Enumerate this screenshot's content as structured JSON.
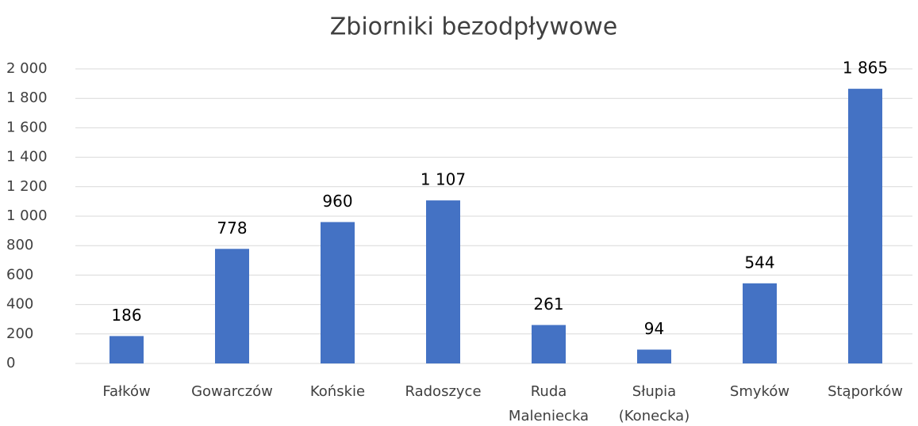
{
  "chart_data": {
    "type": "bar",
    "title": "Zbiorniki bezodpływowe",
    "categories": [
      "Fałków",
      "Gowarczów",
      "Końskie",
      "Radoszyce",
      "Ruda Maleniecka",
      "Słupia (Konecka)",
      "Smyków",
      "Stąporków"
    ],
    "values": [
      186,
      778,
      960,
      1107,
      261,
      94,
      544,
      1865
    ],
    "value_labels": [
      "186",
      "778",
      "960",
      "1 107",
      "261",
      "94",
      "544",
      "1 865"
    ],
    "color": "#4472c4",
    "ylim": [
      0,
      2000
    ],
    "yticks": [
      0,
      200,
      400,
      600,
      800,
      {
        "value": 1000,
        "label": "1 000"
      },
      {
        "value": 1200,
        "label": "1 200"
      },
      {
        "value": 1400,
        "label": "1 400"
      },
      {
        "value": 1600,
        "label": "1 600"
      },
      {
        "value": 1800,
        "label": "1 800"
      },
      {
        "value": 2000,
        "label": "2 000"
      }
    ],
    "grid": true
  }
}
